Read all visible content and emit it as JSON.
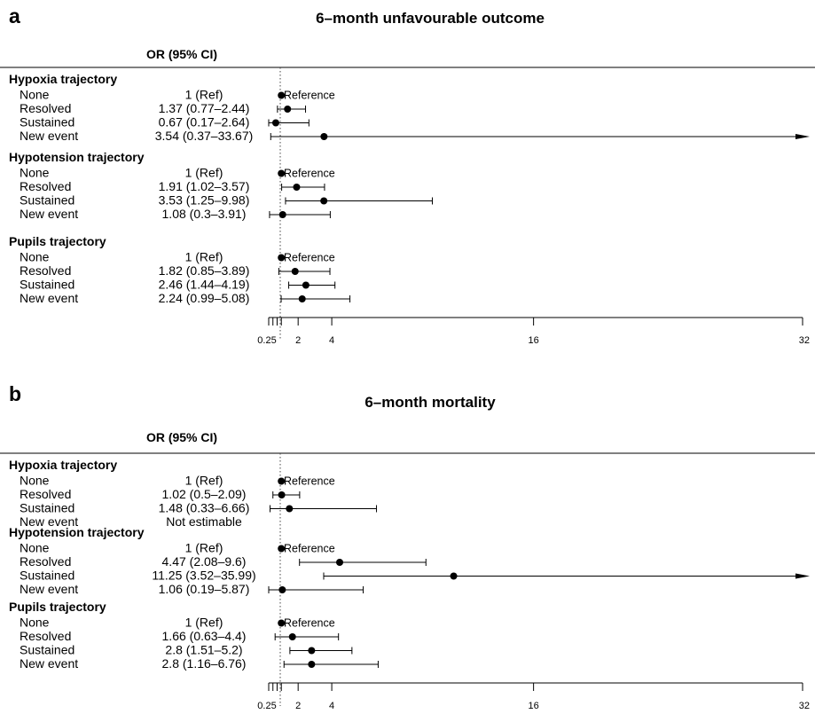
{
  "chart_data": [
    {
      "type": "forest",
      "panel_label": "a",
      "title": "6–month unfavourable outcome",
      "column_header": "OR (95% CI)",
      "x_ticks": [
        0.25,
        2,
        4,
        16,
        32
      ],
      "xlim": [
        0.25,
        32
      ],
      "reference_value": 1,
      "groups": [
        {
          "label": "Hypoxia trajectory",
          "rows": [
            {
              "label": "None",
              "or_text": "1 (Ref)",
              "or": 1,
              "lo": null,
              "hi": null,
              "ref": true
            },
            {
              "label": "Resolved",
              "or_text": "1.37 (0.77–2.44)",
              "or": 1.37,
              "lo": 0.77,
              "hi": 2.44
            },
            {
              "label": "Sustained",
              "or_text": "0.67 (0.17–2.64)",
              "or": 0.67,
              "lo": 0.17,
              "hi": 2.64
            },
            {
              "label": "New event",
              "or_text": "3.54 (0.37–33.67)",
              "or": 3.54,
              "lo": 0.37,
              "hi": 33.67
            }
          ]
        },
        {
          "label": "Hypotension trajectory",
          "rows": [
            {
              "label": "None",
              "or_text": "1 (Ref)",
              "or": 1,
              "lo": null,
              "hi": null,
              "ref": true
            },
            {
              "label": "Resolved",
              "or_text": "1.91 (1.02–3.57)",
              "or": 1.91,
              "lo": 1.02,
              "hi": 3.57
            },
            {
              "label": "Sustained",
              "or_text": "3.53 (1.25–9.98)",
              "or": 3.53,
              "lo": 1.25,
              "hi": 9.98
            },
            {
              "label": "New event",
              "or_text": "1.08 (0.3–3.91)",
              "or": 1.08,
              "lo": 0.3,
              "hi": 3.91
            }
          ]
        },
        {
          "label": "Pupils trajectory",
          "rows": [
            {
              "label": "None",
              "or_text": "1 (Ref)",
              "or": 1,
              "lo": null,
              "hi": null,
              "ref": true
            },
            {
              "label": "Resolved",
              "or_text": "1.82 (0.85–3.89)",
              "or": 1.82,
              "lo": 0.85,
              "hi": 3.89
            },
            {
              "label": "Sustained",
              "or_text": "2.46 (1.44–4.19)",
              "or": 2.46,
              "lo": 1.44,
              "hi": 4.19
            },
            {
              "label": "New event",
              "or_text": "2.24 (0.99–5.08)",
              "or": 2.24,
              "lo": 0.99,
              "hi": 5.08
            }
          ]
        }
      ]
    },
    {
      "type": "forest",
      "panel_label": "b",
      "title": "6–month mortality",
      "column_header": "OR (95% CI)",
      "x_ticks": [
        0.25,
        2,
        4,
        16,
        32
      ],
      "xlim": [
        0.25,
        32
      ],
      "reference_value": 1,
      "groups": [
        {
          "label": "Hypoxia trajectory",
          "rows": [
            {
              "label": "None",
              "or_text": "1 (Ref)",
              "or": 1,
              "lo": null,
              "hi": null,
              "ref": true
            },
            {
              "label": "Resolved",
              "or_text": "1.02 (0.5–2.09)",
              "or": 1.02,
              "lo": 0.5,
              "hi": 2.09
            },
            {
              "label": "Sustained",
              "or_text": "1.48 (0.33–6.66)",
              "or": 1.48,
              "lo": 0.33,
              "hi": 6.66
            },
            {
              "label": "New event",
              "or_text": "Not estimable",
              "or": null,
              "lo": null,
              "hi": null
            }
          ]
        },
        {
          "label": "Hypotension trajectory",
          "rows": [
            {
              "label": "None",
              "or_text": "1 (Ref)",
              "or": 1,
              "lo": null,
              "hi": null,
              "ref": true
            },
            {
              "label": "Resolved",
              "or_text": "4.47 (2.08–9.6)",
              "or": 4.47,
              "lo": 2.08,
              "hi": 9.6
            },
            {
              "label": "Sustained",
              "or_text": "11.25 (3.52–35.99)",
              "or": 11.25,
              "lo": 3.52,
              "hi": 35.99
            },
            {
              "label": "New event",
              "or_text": "1.06 (0.19–5.87)",
              "or": 1.06,
              "lo": 0.19,
              "hi": 5.87
            }
          ]
        },
        {
          "label": "Pupils trajectory",
          "rows": [
            {
              "label": "None",
              "or_text": "1 (Ref)",
              "or": 1,
              "lo": null,
              "hi": null,
              "ref": true
            },
            {
              "label": "Resolved",
              "or_text": "1.66 (0.63–4.4)",
              "or": 1.66,
              "lo": 0.63,
              "hi": 4.4
            },
            {
              "label": "Sustained",
              "or_text": "2.8 (1.51–5.2)",
              "or": 2.8,
              "lo": 1.51,
              "hi": 5.2
            },
            {
              "label": "New event",
              "or_text": "2.8 (1.16–6.76)",
              "or": 2.8,
              "lo": 1.16,
              "hi": 6.76
            }
          ]
        }
      ]
    }
  ],
  "reference_text": "Reference"
}
